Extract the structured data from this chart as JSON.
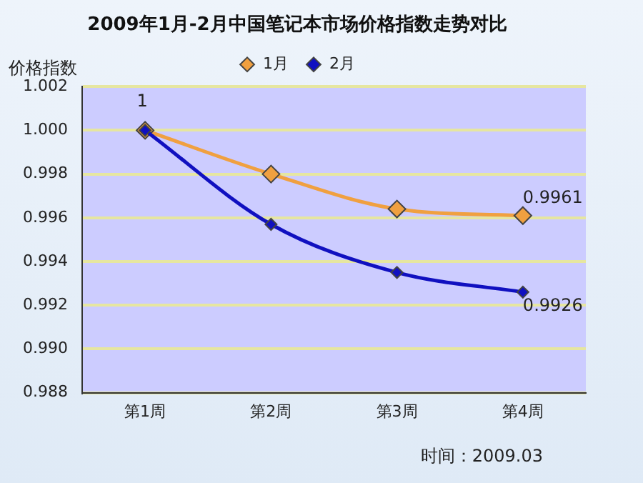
{
  "chart_data": {
    "type": "line",
    "title": "2009年1月-2月中国笔记本市场价格指数走势对比",
    "ylabel": "价格指数",
    "categories": [
      "第1周",
      "第2周",
      "第3周",
      "第4周"
    ],
    "series": [
      {
        "name": "1月",
        "color": "#f0a040",
        "values": [
          1,
          0.998,
          0.9964,
          0.9961
        ],
        "value_labels": [
          "1",
          null,
          null,
          "0.9961"
        ]
      },
      {
        "name": "2月",
        "color": "#1010c0",
        "values": [
          1,
          0.9957,
          0.9935,
          0.9926
        ],
        "value_labels": [
          null,
          null,
          null,
          "0.9926"
        ]
      }
    ],
    "ylim": [
      0.988,
      1.002
    ],
    "yticks": [
      {
        "value": 0.988,
        "label": "0.988"
      },
      {
        "value": 0.99,
        "label": "0.990"
      },
      {
        "value": 0.992,
        "label": "0.992"
      },
      {
        "value": 0.994,
        "label": "0.994"
      },
      {
        "value": 0.996,
        "label": "0.996"
      },
      {
        "value": 0.998,
        "label": "0.998"
      },
      {
        "value": 1,
        "label": "1.000"
      },
      {
        "value": 1.002,
        "label": "1.002"
      }
    ],
    "grid": "y",
    "legend": "top",
    "marker": "diamond",
    "line_style": "solid",
    "annotations": [
      "时间：2009.03"
    ]
  }
}
